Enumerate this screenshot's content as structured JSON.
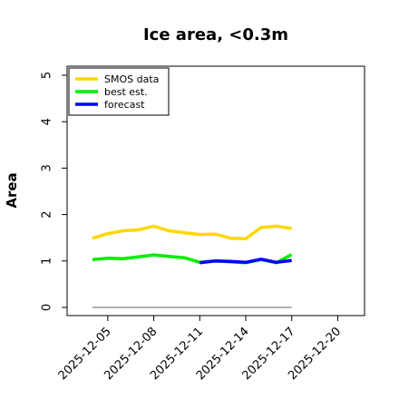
{
  "chart_data": {
    "type": "line",
    "title": "Ice area, <0.3m",
    "xlabel": "",
    "ylabel": "Area",
    "ylim": [
      0,
      5
    ],
    "yticks": [
      "0",
      "1",
      "2",
      "3",
      "4",
      "5"
    ],
    "x_dates": [
      "2025-12-04",
      "2025-12-05",
      "2025-12-06",
      "2025-12-07",
      "2025-12-08",
      "2025-12-09",
      "2025-12-10",
      "2025-12-11",
      "2025-12-12",
      "2025-12-13",
      "2025-12-14",
      "2025-12-15",
      "2025-12-16",
      "2025-12-17"
    ],
    "xticks": [
      {
        "label": "2025-12-05",
        "color": "#000000"
      },
      {
        "label": "2025-12-08",
        "color": "#000000"
      },
      {
        "label": "2025-12-11",
        "color": "#228b22"
      },
      {
        "label": "2025-12-14",
        "color": "#000000"
      },
      {
        "label": "2025-12-17",
        "color": "#000000"
      },
      {
        "label": "2025-12-20",
        "color": "#000000"
      }
    ],
    "series": [
      {
        "name": "SMOS data",
        "color": "#ffd700",
        "x": [
          "2025-12-04",
          "2025-12-05",
          "2025-12-06",
          "2025-12-07",
          "2025-12-08",
          "2025-12-09",
          "2025-12-10",
          "2025-12-11",
          "2025-12-12",
          "2025-12-13",
          "2025-12-14",
          "2025-12-15",
          "2025-12-16",
          "2025-12-17"
        ],
        "values": [
          1.49,
          1.59,
          1.65,
          1.67,
          1.75,
          1.65,
          1.61,
          1.57,
          1.58,
          1.49,
          1.48,
          1.72,
          1.75,
          1.7
        ]
      },
      {
        "name": "best est.",
        "color": "#00ee00",
        "x": [
          "2025-12-04",
          "2025-12-05",
          "2025-12-06",
          "2025-12-07",
          "2025-12-08",
          "2025-12-09",
          "2025-12-10",
          "2025-12-11",
          "2025-12-12",
          "2025-12-13",
          "2025-12-14",
          "2025-12-15",
          "2025-12-16",
          "2025-12-17"
        ],
        "values": [
          1.03,
          1.06,
          1.05,
          1.09,
          1.13,
          1.1,
          1.07,
          0.97,
          1.0,
          0.98,
          0.96,
          1.03,
          0.96,
          1.14
        ]
      },
      {
        "name": "forecast",
        "color": "#0000ff",
        "x": [
          "2025-12-11",
          "2025-12-12",
          "2025-12-13",
          "2025-12-14",
          "2025-12-15",
          "2025-12-16",
          "2025-12-17"
        ],
        "values": [
          0.96,
          1.0,
          0.99,
          0.97,
          1.04,
          0.97,
          1.01
        ]
      }
    ],
    "baseline": {
      "color": "#808080",
      "x": [
        "2025-12-04",
        "2025-12-17"
      ],
      "value": 0
    },
    "legend_position": "top-left",
    "grid": false
  }
}
